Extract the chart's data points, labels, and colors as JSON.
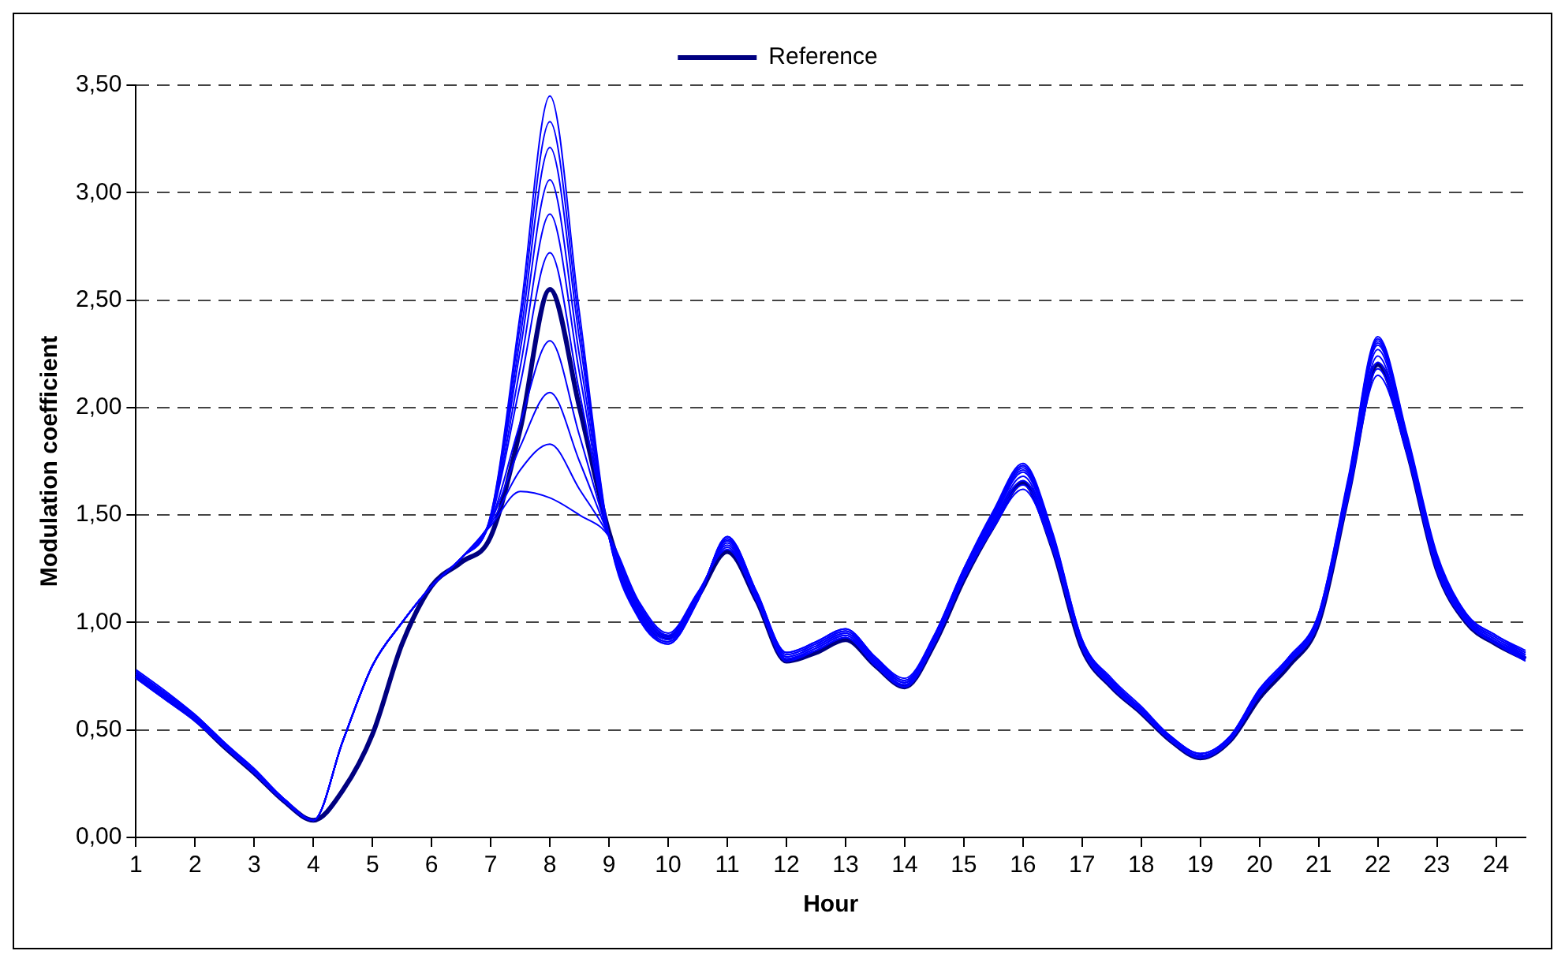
{
  "chart_data": {
    "type": "line",
    "xlabel": "Hour",
    "ylabel": "Modulation coefficient",
    "x": [
      1,
      1.5,
      2,
      2.5,
      3,
      3.5,
      4,
      4.5,
      5,
      5.5,
      6,
      6.5,
      7,
      7.5,
      8,
      8.5,
      9,
      9.5,
      10,
      10.5,
      11,
      11.5,
      12,
      12.5,
      13,
      13.5,
      14,
      14.5,
      15,
      15.5,
      16,
      16.5,
      17,
      17.5,
      18,
      18.5,
      19,
      19.5,
      20,
      20.5,
      21,
      21.5,
      22,
      22.5,
      23,
      23.5,
      24,
      24.5
    ],
    "series": [
      {
        "color": "#0000ff",
        "values": [
          0.74,
          0.64,
          0.54,
          0.42,
          0.3,
          0.17,
          0.08,
          0.45,
          0.8,
          1.0,
          1.17,
          1.3,
          1.45,
          1.61,
          1.58,
          1.5,
          1.4,
          1.1,
          0.95,
          1.14,
          1.34,
          1.1,
          0.83,
          0.87,
          0.93,
          0.8,
          0.7,
          0.9,
          1.2,
          1.44,
          1.62,
          1.34,
          0.88,
          0.7,
          0.58,
          0.45,
          0.37,
          0.45,
          0.66,
          0.81,
          1.0,
          1.58,
          2.15,
          1.78,
          1.24,
          1.0,
          0.9,
          0.82
        ]
      },
      {
        "color": "#0000ff",
        "values": [
          0.75,
          0.65,
          0.55,
          0.42,
          0.3,
          0.17,
          0.08,
          0.45,
          0.8,
          1.0,
          1.17,
          1.3,
          1.46,
          1.71,
          1.83,
          1.62,
          1.4,
          1.09,
          0.94,
          1.13,
          1.35,
          1.1,
          0.82,
          0.87,
          0.93,
          0.8,
          0.7,
          0.9,
          1.21,
          1.45,
          1.64,
          1.35,
          0.88,
          0.7,
          0.58,
          0.45,
          0.37,
          0.45,
          0.66,
          0.81,
          1.0,
          1.59,
          2.18,
          1.79,
          1.25,
          1.0,
          0.9,
          0.83
        ]
      },
      {
        "color": "#0000ff",
        "values": [
          0.76,
          0.66,
          0.55,
          0.42,
          0.3,
          0.17,
          0.08,
          0.45,
          0.8,
          1.0,
          1.17,
          1.3,
          1.47,
          1.82,
          2.07,
          1.75,
          1.4,
          1.08,
          0.94,
          1.13,
          1.36,
          1.11,
          0.83,
          0.88,
          0.94,
          0.81,
          0.71,
          0.91,
          1.21,
          1.46,
          1.66,
          1.36,
          0.89,
          0.71,
          0.58,
          0.45,
          0.37,
          0.45,
          0.66,
          0.81,
          1.01,
          1.6,
          2.21,
          1.8,
          1.26,
          1.01,
          0.91,
          0.83
        ]
      },
      {
        "color": "#0000ff",
        "values": [
          0.75,
          0.65,
          0.55,
          0.42,
          0.3,
          0.17,
          0.08,
          0.45,
          0.8,
          1.0,
          1.17,
          1.3,
          1.47,
          1.93,
          2.31,
          1.87,
          1.4,
          1.07,
          0.93,
          1.12,
          1.37,
          1.11,
          0.83,
          0.88,
          0.94,
          0.81,
          0.71,
          0.91,
          1.22,
          1.47,
          1.68,
          1.37,
          0.89,
          0.71,
          0.59,
          0.46,
          0.38,
          0.46,
          0.67,
          0.82,
          1.01,
          1.61,
          2.24,
          1.81,
          1.27,
          1.01,
          0.91,
          0.84
        ]
      },
      {
        "color": "#0000ff",
        "values": [
          0.76,
          0.66,
          0.56,
          0.43,
          0.3,
          0.17,
          0.08,
          0.45,
          0.8,
          1.0,
          1.17,
          1.3,
          1.48,
          2.11,
          2.72,
          2.07,
          1.4,
          1.06,
          0.92,
          1.12,
          1.38,
          1.12,
          0.84,
          0.89,
          0.95,
          0.82,
          0.72,
          0.92,
          1.23,
          1.48,
          1.7,
          1.38,
          0.9,
          0.72,
          0.59,
          0.46,
          0.38,
          0.46,
          0.67,
          0.82,
          1.02,
          1.62,
          2.27,
          1.82,
          1.28,
          1.02,
          0.92,
          0.84
        ]
      },
      {
        "color": "#0000ff",
        "values": [
          0.77,
          0.67,
          0.56,
          0.43,
          0.31,
          0.18,
          0.08,
          0.45,
          0.8,
          1.0,
          1.17,
          1.3,
          1.48,
          2.19,
          2.9,
          2.16,
          1.4,
          1.05,
          0.92,
          1.12,
          1.38,
          1.12,
          0.84,
          0.89,
          0.95,
          0.82,
          0.72,
          0.92,
          1.23,
          1.49,
          1.71,
          1.39,
          0.9,
          0.72,
          0.59,
          0.46,
          0.38,
          0.46,
          0.67,
          0.82,
          1.02,
          1.63,
          2.29,
          1.83,
          1.29,
          1.02,
          0.92,
          0.85
        ]
      },
      {
        "color": "#0000ff",
        "values": [
          0.76,
          0.66,
          0.56,
          0.43,
          0.31,
          0.18,
          0.08,
          0.45,
          0.8,
          1.0,
          1.17,
          1.3,
          1.49,
          2.27,
          3.06,
          2.24,
          1.4,
          1.04,
          0.91,
          1.11,
          1.39,
          1.13,
          0.85,
          0.9,
          0.96,
          0.83,
          0.72,
          0.93,
          1.24,
          1.5,
          1.72,
          1.4,
          0.91,
          0.72,
          0.6,
          0.46,
          0.38,
          0.46,
          0.68,
          0.83,
          1.03,
          1.64,
          2.3,
          1.84,
          1.3,
          1.03,
          0.93,
          0.85
        ]
      },
      {
        "color": "#0000ff",
        "values": [
          0.77,
          0.67,
          0.57,
          0.44,
          0.31,
          0.18,
          0.08,
          0.45,
          0.8,
          1.0,
          1.17,
          1.3,
          1.49,
          2.33,
          3.21,
          2.32,
          1.4,
          1.03,
          0.91,
          1.11,
          1.39,
          1.13,
          0.85,
          0.9,
          0.96,
          0.83,
          0.73,
          0.93,
          1.24,
          1.5,
          1.73,
          1.41,
          0.91,
          0.73,
          0.6,
          0.47,
          0.39,
          0.47,
          0.68,
          0.83,
          1.03,
          1.65,
          2.31,
          1.85,
          1.3,
          1.03,
          0.93,
          0.86
        ]
      },
      {
        "color": "#0000ff",
        "values": [
          0.77,
          0.67,
          0.57,
          0.44,
          0.31,
          0.18,
          0.08,
          0.45,
          0.8,
          1.0,
          1.17,
          1.3,
          1.5,
          2.39,
          3.33,
          2.38,
          1.4,
          1.03,
          0.9,
          1.1,
          1.4,
          1.14,
          0.86,
          0.91,
          0.97,
          0.84,
          0.73,
          0.94,
          1.25,
          1.51,
          1.73,
          1.41,
          0.92,
          0.73,
          0.6,
          0.47,
          0.39,
          0.47,
          0.69,
          0.84,
          1.04,
          1.66,
          2.32,
          1.86,
          1.31,
          1.04,
          0.94,
          0.86
        ]
      },
      {
        "color": "#0000ff",
        "values": [
          0.78,
          0.68,
          0.57,
          0.44,
          0.32,
          0.18,
          0.08,
          0.45,
          0.8,
          1.0,
          1.17,
          1.3,
          1.5,
          2.44,
          3.45,
          2.44,
          1.4,
          1.02,
          0.9,
          1.1,
          1.4,
          1.14,
          0.86,
          0.91,
          0.97,
          0.84,
          0.74,
          0.94,
          1.25,
          1.52,
          1.74,
          1.42,
          0.92,
          0.74,
          0.61,
          0.47,
          0.39,
          0.47,
          0.69,
          0.84,
          1.04,
          1.67,
          2.33,
          1.87,
          1.32,
          1.04,
          0.94,
          0.87
        ]
      },
      {
        "name": "Reference",
        "color": "#000080",
        "values": [
          0.75,
          0.65,
          0.55,
          0.42,
          0.3,
          0.17,
          0.08,
          0.22,
          0.48,
          0.9,
          1.17,
          1.28,
          1.4,
          1.9,
          2.55,
          2.0,
          1.42,
          1.05,
          0.93,
          1.12,
          1.33,
          1.1,
          0.82,
          0.86,
          0.92,
          0.8,
          0.7,
          0.9,
          1.2,
          1.45,
          1.65,
          1.35,
          0.88,
          0.7,
          0.58,
          0.45,
          0.37,
          0.45,
          0.65,
          0.8,
          1.0,
          1.6,
          2.2,
          1.8,
          1.25,
          1.0,
          0.9,
          0.83
        ]
      }
    ],
    "xlim": [
      1,
      24.5
    ],
    "xticks": [
      1,
      2,
      3,
      4,
      5,
      6,
      7,
      8,
      9,
      10,
      11,
      12,
      13,
      14,
      15,
      16,
      17,
      18,
      19,
      20,
      21,
      22,
      23,
      24
    ],
    "ylim": [
      0,
      3.5
    ],
    "yticks": [
      {
        "value": 0,
        "label": "0,00"
      },
      {
        "value": 0.5,
        "label": "0,50"
      },
      {
        "value": 1,
        "label": "1,00"
      },
      {
        "value": 1.5,
        "label": "1,50"
      },
      {
        "value": 2,
        "label": "2,00"
      },
      {
        "value": 2.5,
        "label": "2,50"
      },
      {
        "value": 3,
        "label": "3,00"
      },
      {
        "value": 3.5,
        "label": "3,50"
      }
    ],
    "grid": "y",
    "legend": "top",
    "marker": "none",
    "line_style": "solid"
  }
}
